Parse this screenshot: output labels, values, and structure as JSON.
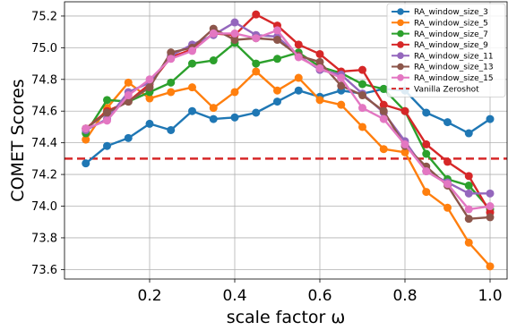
{
  "chart_data": {
    "type": "line",
    "xlabel": "scale factor ω",
    "ylabel": "COMET Scores",
    "xlim": [
      0.0,
      1.04
    ],
    "ylim": [
      73.54,
      75.29
    ],
    "xticks": [
      0.2,
      0.4,
      0.6,
      0.8,
      1.0
    ],
    "xtick_labels": [
      "0.2",
      "0.4",
      "0.6",
      "0.8",
      "1.0"
    ],
    "yticks": [
      73.6,
      73.8,
      74.0,
      74.2,
      74.4,
      74.6,
      74.8,
      75.0,
      75.2
    ],
    "ytick_labels": [
      "73.6",
      "73.8",
      "74.0",
      "74.2",
      "74.4",
      "74.6",
      "74.8",
      "75.0",
      "75.2"
    ],
    "grid": true,
    "legend_position": "top-right",
    "x": [
      0.05,
      0.1,
      0.15,
      0.2,
      0.25,
      0.3,
      0.35,
      0.4,
      0.45,
      0.5,
      0.55,
      0.6,
      0.65,
      0.7,
      0.75,
      0.8,
      0.85,
      0.9,
      0.95,
      1.0
    ],
    "series": [
      {
        "name": "RA_window_size_3",
        "color": "#1f77b4",
        "values": [
          74.27,
          74.38,
          74.43,
          74.52,
          74.48,
          74.6,
          74.55,
          74.56,
          74.59,
          74.66,
          74.73,
          74.69,
          74.73,
          74.71,
          74.74,
          74.73,
          74.59,
          74.53,
          74.46,
          74.55
        ]
      },
      {
        "name": "RA_window_size_5",
        "color": "#ff7f0e",
        "values": [
          74.42,
          74.62,
          74.78,
          74.68,
          74.72,
          74.75,
          74.62,
          74.72,
          74.85,
          74.73,
          74.81,
          74.67,
          74.64,
          74.5,
          74.36,
          74.34,
          74.09,
          73.99,
          73.77,
          73.62
        ]
      },
      {
        "name": "RA_window_size_7",
        "color": "#2ca02c",
        "values": [
          74.46,
          74.67,
          74.66,
          74.72,
          74.78,
          74.9,
          74.92,
          75.03,
          74.9,
          74.93,
          74.97,
          74.88,
          74.84,
          74.77,
          74.74,
          74.6,
          74.33,
          74.17,
          74.13,
          73.98
        ]
      },
      {
        "name": "RA_window_size_9",
        "color": "#d62728",
        "values": [
          74.49,
          74.6,
          74.66,
          74.77,
          74.94,
          74.99,
          75.09,
          75.08,
          75.21,
          75.14,
          75.02,
          74.96,
          74.85,
          74.86,
          74.64,
          74.6,
          74.39,
          74.28,
          74.19,
          73.96
        ]
      },
      {
        "name": "RA_window_size_11",
        "color": "#9467bd",
        "values": [
          74.48,
          74.55,
          74.72,
          74.78,
          74.95,
          75.02,
          75.08,
          75.16,
          75.08,
          75.07,
          74.95,
          74.86,
          74.83,
          74.71,
          74.59,
          74.41,
          74.22,
          74.15,
          74.08,
          74.08
        ]
      },
      {
        "name": "RA_window_size_13",
        "color": "#8c564b",
        "values": [
          74.49,
          74.59,
          74.66,
          74.75,
          74.97,
          75.0,
          75.12,
          75.05,
          75.06,
          75.05,
          74.95,
          74.91,
          74.76,
          74.7,
          74.6,
          74.38,
          74.25,
          74.13,
          73.92,
          73.93
        ]
      },
      {
        "name": "RA_window_size_15",
        "color": "#e377c2",
        "values": [
          74.49,
          74.54,
          74.7,
          74.8,
          74.93,
          74.98,
          75.09,
          75.09,
          75.06,
          75.11,
          74.94,
          74.87,
          74.81,
          74.62,
          74.55,
          74.39,
          74.22,
          74.14,
          73.98,
          74.0
        ]
      }
    ],
    "reference_line": {
      "name": "Vanilla Zeroshot",
      "value": 74.3,
      "color": "#d62728",
      "style": "dashed"
    }
  }
}
